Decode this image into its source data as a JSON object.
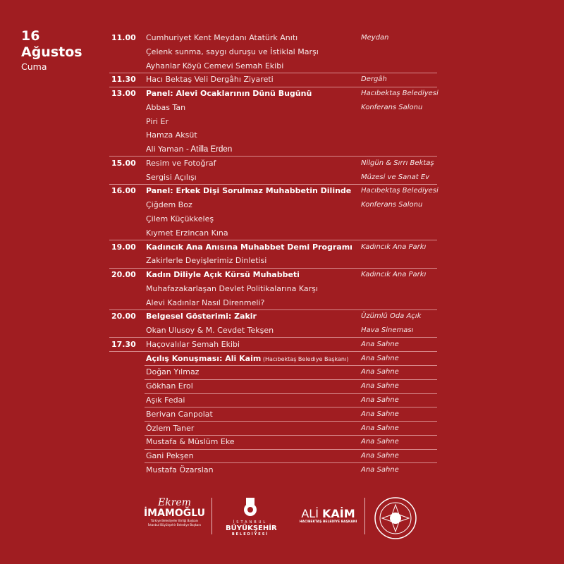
{
  "header": {
    "day": "16",
    "month": "Ağustos",
    "weekday": "Cuma"
  },
  "groups": [
    {
      "time": "11.00",
      "lines": [
        [
          {
            "t": "Cumhuriyet Kent Meydanı Atatürk Anıtı"
          }
        ],
        [
          {
            "t": "Çelenk sunma, saygı duruşu ve İstiklal Marşı"
          }
        ],
        [
          {
            "t": "Ayhanlar Köyü Cemevi Semah Ekibi"
          }
        ]
      ],
      "loc": [
        "Meydan"
      ]
    },
    {
      "time": "11.30",
      "lines": [
        [
          {
            "t": "Hacı Bektaş Veli Dergâhı Ziyareti"
          }
        ]
      ],
      "loc": [
        "Dergâh"
      ]
    },
    {
      "time": "13.00",
      "lines": [
        [
          {
            "t": "Panel: Alevi Ocaklarının Dünü Bugünü",
            "s": "b"
          }
        ],
        [
          {
            "t": "Abbas Tan"
          }
        ],
        [
          {
            "t": "Piri Er"
          }
        ],
        [
          {
            "t": "Hamza Aksüt"
          }
        ],
        [
          {
            "t": "Ali Yaman  "
          },
          {
            "t": "- Atilla Erden",
            "s": "alt"
          }
        ]
      ],
      "loc": [
        "Hacıbektaş Belediyesi",
        "Konferans Salonu"
      ]
    },
    {
      "time": "15.00",
      "lines": [
        [
          {
            "t": "Resim ve Fotoğraf"
          }
        ],
        [
          {
            "t": "Sergisi Açılışı"
          }
        ]
      ],
      "loc": [
        "Nilgün & Sırrı Bektaş",
        "Müzesi ve Sanat Ev"
      ]
    },
    {
      "time": "16.00",
      "lines": [
        [
          {
            "t": "Panel: Erkek Dişi Sorulmaz Muhabbetin Dilinde",
            "s": "b"
          }
        ],
        [
          {
            "t": "Çiğdem Boz"
          }
        ],
        [
          {
            "t": "Çilem Küçükkeleş"
          }
        ],
        [
          {
            "t": "Kıymet Erzincan Kına"
          }
        ]
      ],
      "loc": [
        "Hacıbektaş Belediyesi",
        "Konferans Salonu"
      ]
    },
    {
      "time": "19.00",
      "lines": [
        [
          {
            "t": "Kadıncık Ana Anısına Muhabbet Demi Programı",
            "s": "b"
          }
        ],
        [
          {
            "t": "Zakirlerle Deyişlerimiz Dinletisi"
          }
        ]
      ],
      "loc": [
        "Kadıncık Ana Parkı"
      ]
    },
    {
      "time": "20.00",
      "lines": [
        [
          {
            "t": "Kadın Diliyle Açık Kürsü Muhabbeti",
            "s": "b"
          }
        ],
        [
          {
            "t": "Muhafazakarlaşan Devlet Politikalarına Karşı"
          }
        ],
        [
          {
            "t": "Alevi Kadınlar Nasıl Direnmeli?"
          }
        ]
      ],
      "loc": [
        "Kadıncık Ana Parkı"
      ]
    },
    {
      "time": "20.00",
      "lines": [
        [
          {
            "t": "Belgesel Gösterimi: Zakir",
            "s": "b"
          }
        ],
        [
          {
            "t": "Okan Ulusoy & M. Cevdet Tekşen"
          }
        ]
      ],
      "loc": [
        "Üzümlü Oda Açık",
        "Hava Sineması"
      ]
    },
    {
      "time": "17.30",
      "lines": [
        [
          {
            "t": "Haçovalılar Semah Ekibi"
          }
        ]
      ],
      "loc": [
        "Ana Sahne"
      ]
    },
    {
      "time": "",
      "lines": [
        [
          {
            "t": "Açılış Konuşması: Ali Kaim",
            "s": "b"
          },
          {
            "t": " (Hacıbektaş Belediye Başkanı)",
            "s": "sm"
          }
        ]
      ],
      "loc": [
        "Ana Sahne"
      ]
    },
    {
      "time": "",
      "lines": [
        [
          {
            "t": "Doğan Yılmaz"
          }
        ]
      ],
      "loc": [
        "Ana Sahne"
      ]
    },
    {
      "time": "",
      "lines": [
        [
          {
            "t": "Gökhan Erol"
          }
        ]
      ],
      "loc": [
        "Ana Sahne"
      ]
    },
    {
      "time": "",
      "lines": [
        [
          {
            "t": "Aşık Fedai"
          }
        ]
      ],
      "loc": [
        "Ana Sahne"
      ]
    },
    {
      "time": "",
      "lines": [
        [
          {
            "t": "Berivan Canpolat"
          }
        ]
      ],
      "loc": [
        "Ana Sahne"
      ]
    },
    {
      "time": "",
      "lines": [
        [
          {
            "t": "Özlem Taner"
          }
        ]
      ],
      "loc": [
        "Ana Sahne"
      ]
    },
    {
      "time": "",
      "lines": [
        [
          {
            "t": "Mustafa & Müslüm Eke"
          }
        ]
      ],
      "loc": [
        "Ana Sahne"
      ]
    },
    {
      "time": "",
      "lines": [
        [
          {
            "t": "Gani Pekşen"
          }
        ]
      ],
      "loc": [
        "Ana Sahne"
      ]
    },
    {
      "time": "",
      "lines": [
        [
          {
            "t": "Mustafa Özarslan"
          }
        ]
      ],
      "loc": [
        "Ana Sahne"
      ]
    }
  ],
  "footer": {
    "imamoglu": {
      "script": "Ekrem",
      "name": "İMAMOĞLU",
      "sub1": "Türkiye Belediyeler Birliği Başkanı",
      "sub2": "İstanbul Büyükşehir Belediye Başkanı"
    },
    "ibb": {
      "l1": "İSTANBUL",
      "l2": "BÜYÜKŞEHİR",
      "l3": "BELEDİYESİ"
    },
    "kaim": {
      "first": "ALİ",
      "last": "KAİM",
      "sub": "HACIBEKTAŞ BELEDİYE BAŞKANI"
    }
  },
  "colors": {
    "background": "#a01d21",
    "text": "#f6e9e9",
    "divider": "#d98c8e"
  }
}
